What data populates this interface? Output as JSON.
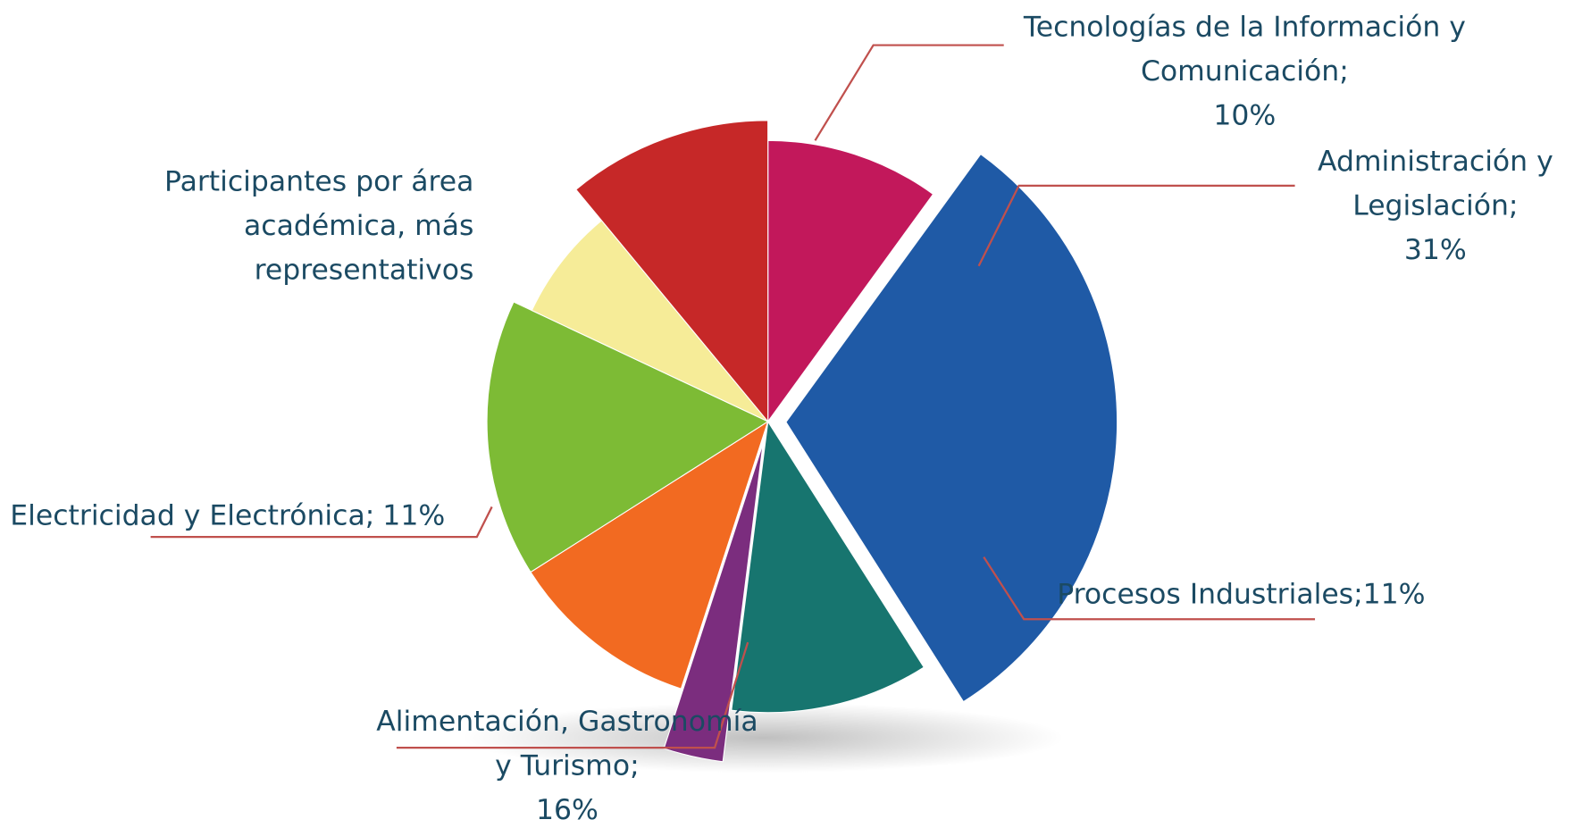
{
  "chart_data": {
    "type": "pie",
    "title": "Participantes por área académica, más representativos",
    "categories": [
      "Tecnologías de la Información y Comunicación;",
      "Administración y Legislación;",
      null,
      null,
      "Procesos Industriales;",
      "Alimentación, Gastronomía y Turismo;",
      null,
      "Electricidad y Electrónica;"
    ],
    "values": [
      10,
      31,
      11,
      3,
      11,
      16,
      7,
      11
    ],
    "value_labels": [
      "10%",
      "31%",
      null,
      null,
      "11%",
      "16%",
      null,
      "11%"
    ],
    "colors": [
      "#c2185b",
      "#1f5aa6",
      "#17756f",
      "#7b2d7e",
      "#f26a21",
      "#7dbb35",
      "#f6ec98",
      "#c62828"
    ]
  }
}
